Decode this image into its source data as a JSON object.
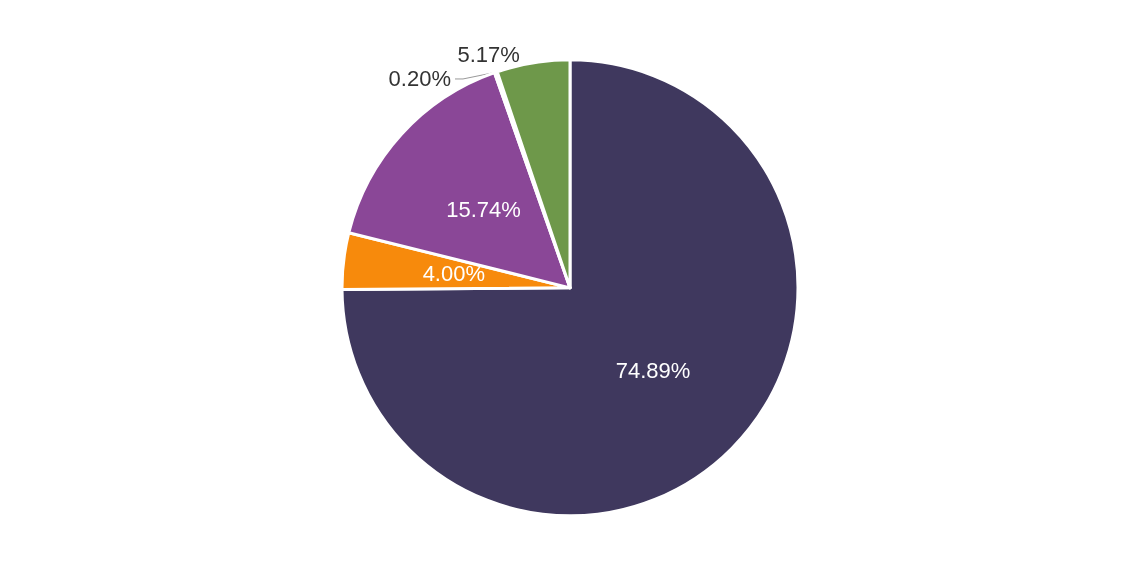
{
  "chart_data": {
    "type": "pie",
    "categories": [
      null,
      null,
      null,
      null,
      null
    ],
    "values": [
      74.89,
      4.0,
      15.74,
      0.2,
      5.17
    ],
    "colors": [
      "#3f385e",
      "#f78a0c",
      "#8a4797",
      "#c9c9c9",
      "#6e984a"
    ],
    "value_labels": [
      "74.89%",
      "4.00%",
      "15.74%",
      "0.20%",
      "5.17%"
    ]
  }
}
